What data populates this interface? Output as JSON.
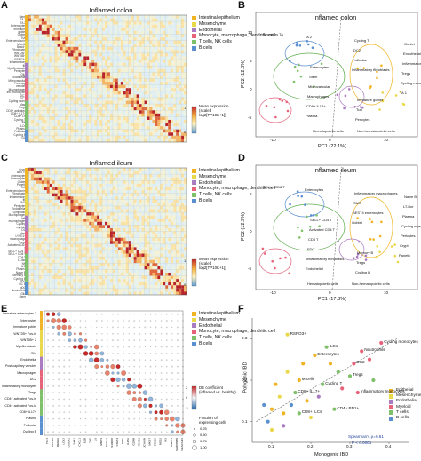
{
  "panels": {
    "A": {
      "label": "A",
      "title": "Inflamed colon",
      "legend": [
        {
          "label": "Intestinal epithelium",
          "color": "#f0b323"
        },
        {
          "label": "Mesenchyme",
          "color": "#e8d84a"
        },
        {
          "label": "Endothelial",
          "color": "#a97bc0"
        },
        {
          "label": "Monocyte, macrophage, dendritic cell",
          "color": "#e7637a"
        },
        {
          "label": "T cells, NK cells",
          "color": "#7fc06a"
        },
        {
          "label": "B cells",
          "color": "#5a8fd0"
        }
      ],
      "colorbar_title": "Mean expression (scaled log2[TP10K+1])",
      "colorbar_ticks": [
        "1",
        "0"
      ]
    },
    "B": {
      "label": "B",
      "title": "Inflamed colon",
      "xlabel": "PC1 (22.1%)",
      "ylabel": "PC2 (12.8%)",
      "xticks": [
        "-10",
        "0",
        "10"
      ],
      "yticks": [
        "10",
        "5",
        "0",
        "-5"
      ],
      "region_left": "Hematopoietic cells",
      "region_right": "Non-hematopoietic cells",
      "labels": [
        "Secretory TA",
        "Enterocytes",
        "Immature goblet",
        "Goblet",
        "Stem",
        "Tuft",
        "Endothelial",
        "Microvascular",
        "Pericytes",
        "Inflammatory monocytes",
        "Macrophages",
        "Cycling T",
        "Tregs",
        "CD8+ IL17+",
        "DC2",
        "Cycling monocytes",
        "Plasma",
        "Follicular",
        "TA 1",
        "TA 2",
        "Inflammatory fibroblasts"
      ]
    },
    "C": {
      "label": "C",
      "title": "Inflamed ileum",
      "legend": [
        {
          "label": "Intestinal epithelium",
          "color": "#f0b323"
        },
        {
          "label": "Mesenchyme",
          "color": "#e8d84a"
        },
        {
          "label": "Endothelial",
          "color": "#a97bc0"
        },
        {
          "label": "Monocyte, macrophage, dendritic cell",
          "color": "#e7637a"
        },
        {
          "label": "T cells, NK cells",
          "color": "#7fc06a"
        },
        {
          "label": "B cells",
          "color": "#5a8fd0"
        }
      ],
      "colorbar_title": "Mean expression (scaled log2[TP10K+1])",
      "colorbar_ticks": [
        "1",
        "0"
      ]
    },
    "D": {
      "label": "D",
      "title": "Inflamed ileum",
      "xlabel": "PC1 (17.3%)",
      "ylabel": "PC2 (12.9%)",
      "xticks": [
        "-10",
        "0",
        "10"
      ],
      "yticks": [
        "5",
        "0",
        "-5"
      ],
      "region_left": "Hematopoietic cells",
      "region_right": "Non-hematopoietic cells",
      "labels": [
        "SELL+ CD8 T",
        "SELL+ CD4 T",
        "Memory B",
        "Naive B",
        "Activated CD4 T",
        "Tregs",
        "LT-like",
        "CD8 T",
        "Cycling B",
        "Plasma",
        "FDC",
        "Inflammatory macrophages",
        "Cycling myeloid",
        "Inflammatory fibroblasts",
        "SMC",
        "Pericytes",
        "Endothelial",
        "BEST4 enterocytes",
        "Crypt",
        "Enterocytes",
        "Goblet",
        "Paneth"
      ]
    },
    "E": {
      "label": "E",
      "legend": [
        {
          "label": "Intestinal epithelium",
          "color": "#f0b323"
        },
        {
          "label": "Mesenchyme",
          "color": "#e8d84a"
        },
        {
          "label": "Endothelial",
          "color": "#a97bc0"
        },
        {
          "label": "Monocyte, macrophage, dendritic cell",
          "color": "#e7637a"
        },
        {
          "label": "T cells, NK cells",
          "color": "#7fc06a"
        },
        {
          "label": "B cells",
          "color": "#5a8fd0"
        }
      ],
      "de_title": "DE coefficient (inflamed vs. healthy)",
      "de_ticks": [
        "2",
        "0",
        "-2"
      ],
      "frac_title": "Fraction of expressing cells",
      "frac_values": [
        "0.25",
        "0.50",
        "0.75",
        "1.00"
      ],
      "row_labels": [
        "Immature enterocytes 2",
        "Enterocytes",
        "Immature goblet",
        "WNT2B+ Fos-hi",
        "WNT5B+ 2",
        "Myofibroblasts",
        "Glia",
        "Endothelial",
        "Post-capillary venules",
        "Macrophages",
        "DC2",
        "Inflammatory monocytes",
        "Tregs",
        "CD4+ activated Fos-hi",
        "CD4+ activated Fos-lo",
        "CD8+ IL17+",
        "Plasma",
        "Follicular",
        "Cycling B"
      ]
    },
    "F": {
      "label": "F",
      "xlabel": "Monogenic IBD",
      "ylabel": "Polygenic IBD",
      "xticks": [
        "0.1",
        "0.2",
        "0.3",
        "0.4"
      ],
      "yticks": [
        "0.3",
        "0.2",
        "0.1"
      ],
      "stat_line1": "Spearman's ρ=0.61",
      "stat_line2": "P < 0.0001",
      "legend": [
        {
          "label": "Epithelial",
          "color": "#f0b323"
        },
        {
          "label": "Mesenchyme",
          "color": "#e8d84a"
        },
        {
          "label": "Endothelial",
          "color": "#a97bc0"
        },
        {
          "label": "Myeloid",
          "color": "#e7637a"
        },
        {
          "label": "T cells",
          "color": "#7fc06a"
        },
        {
          "label": "B cells",
          "color": "#5a8fd0"
        }
      ],
      "point_labels": [
        "RSPO3+",
        "ILCs",
        "Enterocytes",
        "Neutrophils",
        "Cycling monocytes",
        "DC2",
        "M cells",
        "Tregs",
        "CD8+ IL17+",
        "Cycling T",
        "Inflammatory monocytes",
        "CD4+ PD1+",
        "CD8+ ILCs"
      ],
      "chart_data": {
        "type": "scatter",
        "xlabel": "Monogenic IBD",
        "ylabel": "Polygenic IBD",
        "xlim": [
          0.05,
          0.45
        ],
        "ylim": [
          0.05,
          0.35
        ],
        "points": [
          {
            "label": "RSPO3+",
            "x": 0.14,
            "y": 0.31,
            "group": "Mesenchyme"
          },
          {
            "label": "ILCs",
            "x": 0.24,
            "y": 0.28,
            "group": "T cells"
          },
          {
            "label": "Enterocytes",
            "x": 0.21,
            "y": 0.26,
            "group": "Epithelial"
          },
          {
            "label": "Neutrophils",
            "x": 0.33,
            "y": 0.27,
            "group": "Myeloid"
          },
          {
            "label": "Cycling monocytes",
            "x": 0.38,
            "y": 0.29,
            "group": "Myeloid"
          },
          {
            "label": "DC2",
            "x": 0.31,
            "y": 0.24,
            "group": "Myeloid"
          },
          {
            "label": "M cells",
            "x": 0.17,
            "y": 0.2,
            "group": "Epithelial"
          },
          {
            "label": "Tregs",
            "x": 0.3,
            "y": 0.21,
            "group": "T cells"
          },
          {
            "label": "CD8+ IL17+",
            "x": 0.16,
            "y": 0.17,
            "group": "T cells"
          },
          {
            "label": "Cycling T",
            "x": 0.23,
            "y": 0.19,
            "group": "T cells"
          },
          {
            "label": "Inflammatory monocytes",
            "x": 0.32,
            "y": 0.17,
            "group": "Myeloid"
          },
          {
            "label": "CD4+ PD1+",
            "x": 0.26,
            "y": 0.13,
            "group": "T cells"
          },
          {
            "label": "CD8+ ILCs",
            "x": 0.17,
            "y": 0.12,
            "group": "T cells"
          },
          {
            "label": "",
            "x": 0.09,
            "y": 0.1,
            "group": "B cells"
          },
          {
            "label": "",
            "x": 0.1,
            "y": 0.13,
            "group": "Epithelial"
          },
          {
            "label": "",
            "x": 0.12,
            "y": 0.16,
            "group": "Mesenchyme"
          },
          {
            "label": "",
            "x": 0.13,
            "y": 0.09,
            "group": "Endothelial"
          },
          {
            "label": "",
            "x": 0.15,
            "y": 0.14,
            "group": "B cells"
          },
          {
            "label": "",
            "x": 0.19,
            "y": 0.15,
            "group": "Epithelial"
          },
          {
            "label": "",
            "x": 0.2,
            "y": 0.11,
            "group": "Mesenchyme"
          },
          {
            "label": "",
            "x": 0.22,
            "y": 0.16,
            "group": "Endothelial"
          },
          {
            "label": "",
            "x": 0.11,
            "y": 0.19,
            "group": "Epithelial"
          },
          {
            "label": "",
            "x": 0.14,
            "y": 0.22,
            "group": "Mesenchyme"
          },
          {
            "label": "",
            "x": 0.18,
            "y": 0.24,
            "group": "Epithelial"
          },
          {
            "label": "",
            "x": 0.27,
            "y": 0.22,
            "group": "T cells"
          },
          {
            "label": "",
            "x": 0.28,
            "y": 0.18,
            "group": "Myeloid"
          },
          {
            "label": "",
            "x": 0.25,
            "y": 0.24,
            "group": "Epithelial"
          },
          {
            "label": "",
            "x": 0.08,
            "y": 0.14,
            "group": "B cells"
          },
          {
            "label": "",
            "x": 0.1,
            "y": 0.08,
            "group": "Mesenchyme"
          },
          {
            "label": "",
            "x": 0.13,
            "y": 0.12,
            "group": "Epithelial"
          },
          {
            "label": "",
            "x": 0.35,
            "y": 0.25,
            "group": "Myeloid"
          },
          {
            "label": "",
            "x": 0.36,
            "y": 0.2,
            "group": "T cells"
          }
        ],
        "trend": {
          "x": [
            0.06,
            0.42
          ],
          "y": [
            0.1,
            0.3
          ]
        }
      }
    }
  }
}
